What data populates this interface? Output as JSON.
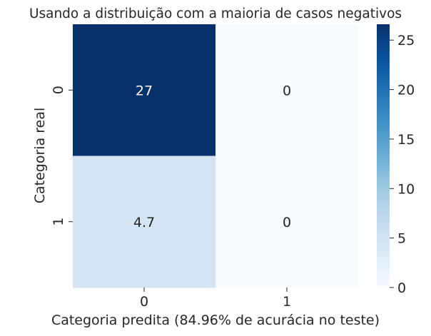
{
  "chart_data": {
    "type": "heatmap",
    "title": "Usando a distribuição com a maioria de casos negativos",
    "xlabel": "Categoria predita (84.96% de acurácia no teste)",
    "ylabel": "Categoria real",
    "x_categories": [
      "0",
      "1"
    ],
    "y_categories": [
      "0",
      "1"
    ],
    "values": [
      [
        27,
        0
      ],
      [
        4.7,
        0
      ]
    ],
    "annotations": [
      [
        "27",
        "0"
      ],
      [
        "4.7",
        "0"
      ]
    ],
    "colormap": "Blues",
    "colorbar": {
      "min": 0,
      "max": 26.6,
      "ticks": [
        "0",
        "5",
        "10",
        "15",
        "20",
        "25"
      ]
    },
    "grid": false
  }
}
